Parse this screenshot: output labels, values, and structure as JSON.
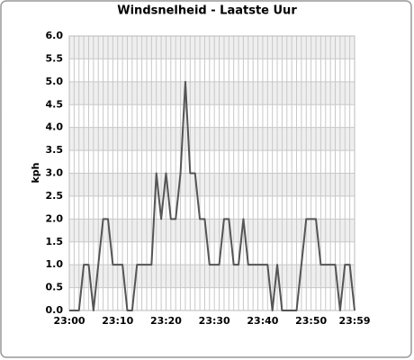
{
  "chart_data": {
    "type": "line",
    "title": "Windsnelheid - Laatste Uur",
    "y_label": "kph",
    "categories": [
      "23:00",
      null,
      null,
      null,
      null,
      null,
      null,
      null,
      null,
      null,
      "23:10",
      null,
      null,
      null,
      null,
      null,
      null,
      null,
      null,
      null,
      "23:20",
      null,
      null,
      null,
      null,
      null,
      null,
      null,
      null,
      null,
      "23:30",
      null,
      null,
      null,
      null,
      null,
      null,
      null,
      null,
      null,
      "23:40",
      null,
      null,
      null,
      null,
      null,
      null,
      null,
      null,
      null,
      "23:50",
      null,
      null,
      null,
      null,
      null,
      null,
      null,
      null,
      "23:59"
    ],
    "values": [
      0,
      0,
      0,
      1,
      1,
      0,
      1,
      2,
      2,
      1,
      1,
      1,
      0,
      0,
      1,
      1,
      1,
      1,
      3,
      2,
      3,
      2,
      2,
      3,
      5,
      3,
      3,
      2,
      2,
      1,
      1,
      1,
      2,
      2,
      1,
      1,
      2,
      1,
      1,
      1,
      1,
      1,
      0,
      1,
      0,
      0,
      0,
      0,
      1,
      2,
      2,
      2,
      1,
      1,
      1,
      1,
      0,
      1,
      1,
      0
    ],
    "color": "#555555",
    "ylim": [
      0,
      6
    ],
    "yticks": [
      {
        "value": 0,
        "label": "0.0"
      },
      0.5,
      {
        "value": 1,
        "label": "1.0"
      },
      1.5,
      {
        "value": 2,
        "label": "2.0"
      },
      2.5,
      {
        "value": 3,
        "label": "3.0"
      },
      3.5,
      {
        "value": 4,
        "label": "4.0"
      },
      4.5,
      {
        "value": 5,
        "label": "5.0"
      },
      5.5,
      {
        "value": 6,
        "label": "6.0"
      }
    ],
    "grid": true
  }
}
